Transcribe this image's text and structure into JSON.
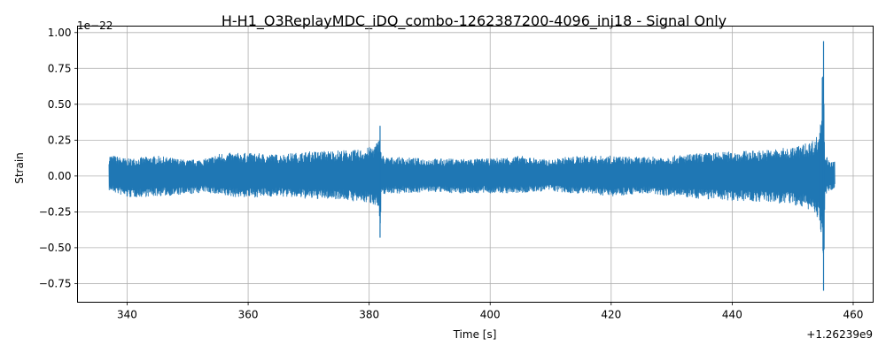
{
  "chart_data": {
    "type": "line",
    "title": "H-H1_O3ReplayMDC_iDQ_combo-1262387200-4096_inj18 - Signal Only",
    "xlabel": "Time [s]",
    "ylabel": "Strain",
    "x_offset_label": "+1.26239e9",
    "y_scale_label": "1e−22",
    "xlim": [
      331.8,
      463.3
    ],
    "ylim": [
      -0.88,
      1.045
    ],
    "x_ticks": [
      340,
      360,
      380,
      400,
      420,
      440,
      460
    ],
    "x_tick_labels": [
      "340",
      "360",
      "380",
      "400",
      "420",
      "440",
      "460"
    ],
    "y_ticks": [
      -0.75,
      -0.5,
      -0.25,
      0.0,
      0.25,
      0.5,
      0.75,
      1.0
    ],
    "y_tick_labels": [
      "−0.75",
      "−0.50",
      "−0.25",
      "0.00",
      "0.25",
      "0.50",
      "0.75",
      "1.00"
    ],
    "grid": true,
    "color": "#1f77b4",
    "series": [
      {
        "x": [
          337.0,
          340.0,
          345.0,
          350.0,
          353.0,
          355.5,
          360.0,
          365.0,
          370.0,
          375.0,
          378.0,
          380.0,
          381.0,
          381.5,
          381.8,
          382.0,
          383.0,
          385.0,
          390.0,
          395.0,
          400.0,
          405.0,
          410.0,
          412.0,
          415.0,
          420.0,
          425.0,
          430.0,
          435.0,
          440.0,
          445.0,
          450.0,
          453.0,
          454.5,
          455.1,
          455.3,
          456.0,
          457.0
        ],
        "y_max": [
          0.15,
          0.12,
          0.14,
          0.11,
          0.12,
          0.16,
          0.16,
          0.15,
          0.17,
          0.18,
          0.18,
          0.2,
          0.22,
          0.25,
          0.35,
          0.15,
          0.13,
          0.13,
          0.12,
          0.12,
          0.12,
          0.14,
          0.11,
          0.13,
          0.14,
          0.14,
          0.13,
          0.14,
          0.16,
          0.17,
          0.18,
          0.2,
          0.24,
          0.3,
          0.94,
          0.17,
          0.1,
          0.1
        ],
        "y_min": [
          -0.1,
          -0.15,
          -0.14,
          -0.13,
          -0.11,
          -0.14,
          -0.15,
          -0.14,
          -0.16,
          -0.16,
          -0.18,
          -0.19,
          -0.2,
          -0.23,
          -0.43,
          -0.13,
          -0.12,
          -0.12,
          -0.11,
          -0.12,
          -0.12,
          -0.12,
          -0.1,
          -0.12,
          -0.12,
          -0.14,
          -0.12,
          -0.14,
          -0.16,
          -0.17,
          -0.18,
          -0.2,
          -0.24,
          -0.31,
          -0.8,
          -0.15,
          -0.1,
          -0.09
        ]
      }
    ]
  }
}
